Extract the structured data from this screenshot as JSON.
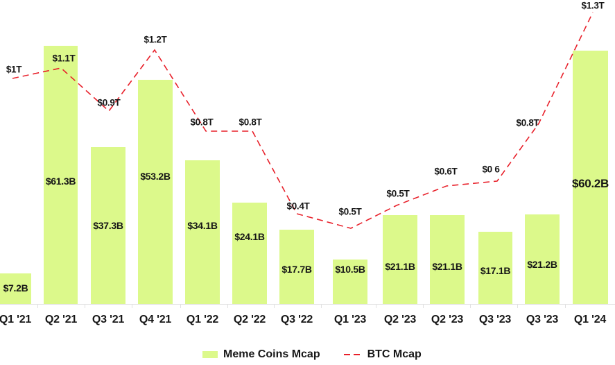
{
  "chart_data": {
    "type": "bar",
    "title": "",
    "xlabel": "",
    "ylabel": "",
    "categories": [
      "Q1 '21",
      "Q2 '21",
      "Q3 '21",
      "Q4 '21",
      "Q1 '22",
      "Q2 '22",
      "Q3 '22",
      "Q1 '23",
      "Q2 '23",
      "Q2 '23",
      "Q3 '23",
      "Q3 '23",
      "Q1 '24"
    ],
    "series": [
      {
        "name": "Meme Coins Mcap",
        "type": "bar",
        "color": "#dcf98b",
        "unit": "B USD",
        "values": [
          7.2,
          61.3,
          37.3,
          53.2,
          34.1,
          24.1,
          17.7,
          10.5,
          21.1,
          21.1,
          17.1,
          21.2,
          60.2
        ],
        "labels": [
          "$7.2B",
          "$61.3B",
          "$37.3B",
          "$53.2B",
          "$34.1B",
          "$24.1B",
          "$17.7B",
          "$10.5B",
          "$21.1B",
          "$21.1B",
          "$17.1B",
          "$21.2B",
          "$60.2B"
        ]
      },
      {
        "name": "BTC Mcap",
        "type": "line",
        "style": "dashed",
        "color": "#e8202a",
        "unit": "T USD",
        "values": [
          1.0,
          1.1,
          0.9,
          1.2,
          0.8,
          0.8,
          0.4,
          0.5,
          0.5,
          0.6,
          0.6,
          0.8,
          1.3
        ],
        "labels": [
          "$1T",
          "$1.1T",
          "$0.9T",
          "$1.2T",
          "$0.8T",
          "$0.8T",
          "$0.4T",
          "$0.5T",
          "$0.5T",
          "$0.6T",
          "$0 6",
          "$0.8T",
          "$1.3T"
        ]
      }
    ],
    "legend": {
      "position": "bottom",
      "entries": [
        "Meme Coins Mcap",
        "BTC Mcap"
      ]
    },
    "grid": false
  },
  "legend": {
    "bar_label": "Meme Coins Mcap",
    "line_label": "BTC Mcap"
  },
  "colors": {
    "bar": "#dcf98b",
    "line": "#e8202a",
    "text": "#161616",
    "axis": "#e1e1e1"
  }
}
